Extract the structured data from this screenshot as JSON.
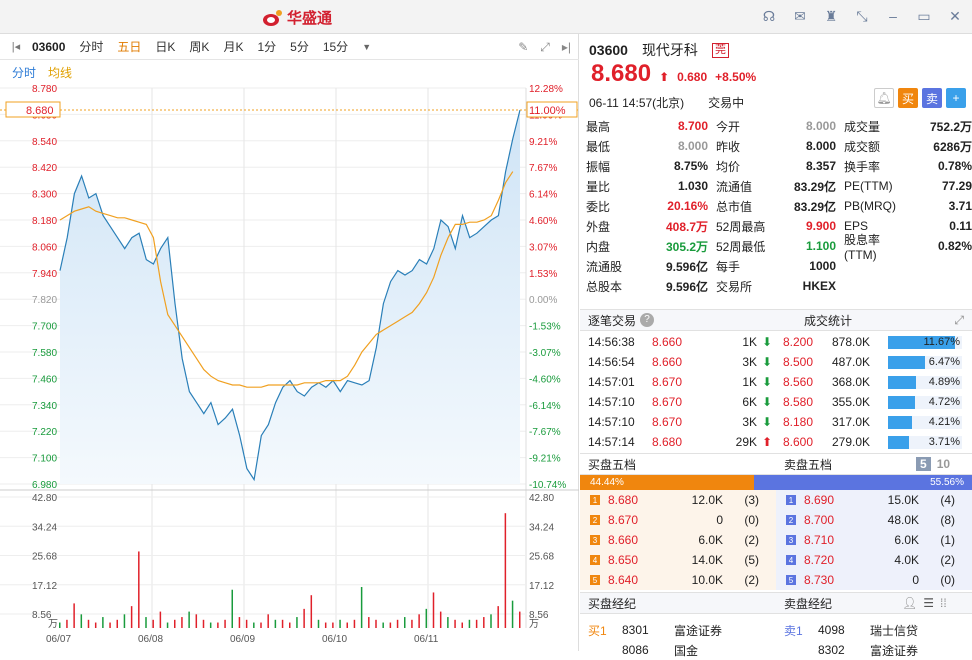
{
  "app": {
    "title": "华盛通"
  },
  "toolbar": {
    "code": "03600",
    "periods": [
      "分时",
      "五日",
      "日K",
      "周K",
      "月K",
      "1分",
      "5分",
      "15分"
    ],
    "active_period": "五日",
    "subtabs": [
      "分时",
      "均线"
    ]
  },
  "colors": {
    "up": "#e0202a",
    "down": "#199b3c",
    "price_line": "#2a7fb8",
    "avg_line": "#f0a020",
    "brand": "#d2202f"
  },
  "chart_data": {
    "type": "line",
    "ylim": [
      6.98,
      8.78
    ],
    "y_ticks_left": [
      "8.780",
      "8.680",
      "8.540",
      "8.420",
      "8.300",
      "8.180",
      "8.060",
      "7.940",
      "7.820",
      "7.700",
      "7.580",
      "7.460",
      "7.340",
      "7.220",
      "7.100",
      "6.980"
    ],
    "y_ticks_right": [
      "12.28%",
      "11.00%",
      "9.21%",
      "7.67%",
      "6.14%",
      "4.60%",
      "3.07%",
      "1.53%",
      "0.00%",
      "-1.53%",
      "-3.07%",
      "-4.60%",
      "-6.14%",
      "-7.67%",
      "-9.21%",
      "-10.74%"
    ],
    "current_price": "8.680",
    "current_pct": "11.00%",
    "x_labels": [
      "06/07",
      "06/08",
      "06/09",
      "06/10",
      "06/11"
    ],
    "volume_ticks": [
      "42.80",
      "34.24",
      "25.68",
      "17.12",
      "8.56",
      "万"
    ],
    "series": [
      {
        "values": [
          7.95,
          8.1,
          8.3,
          8.38,
          8.28,
          8.3,
          8.2,
          8.15,
          8.1,
          8.05,
          8.1,
          8.12,
          8.0,
          7.98,
          8.05,
          8.1,
          7.8,
          7.55,
          7.4,
          7.35,
          7.3,
          7.35,
          7.25,
          7.28,
          7.32,
          7.2,
          7.05,
          7.0,
          7.2,
          7.25,
          7.35,
          7.42,
          7.45,
          7.4,
          7.38,
          7.42,
          7.44,
          7.42,
          7.45,
          7.4,
          7.45,
          7.44,
          7.43,
          7.45,
          7.6,
          7.8,
          7.9,
          7.95,
          7.93,
          7.95,
          8.0,
          7.98,
          8.05,
          8.18,
          8.15,
          8.05,
          8.2,
          8.1,
          8.12,
          8.15,
          8.18,
          8.2,
          8.4,
          8.55,
          8.68
        ]
      },
      {
        "values": [
          8.18,
          8.2,
          8.22,
          8.23,
          8.24,
          8.22,
          8.21,
          8.2,
          8.19,
          8.19,
          8.18,
          8.17,
          8.16,
          8.1,
          7.9,
          7.75,
          7.7,
          7.65,
          7.6,
          7.55,
          7.5,
          7.47,
          7.45,
          7.44,
          7.43,
          7.43,
          7.42,
          7.42,
          7.42,
          7.43,
          7.43,
          7.43,
          7.43,
          7.43,
          7.44,
          7.44,
          7.44,
          7.45,
          7.45,
          7.45,
          7.47,
          7.52,
          7.58,
          7.62,
          7.66,
          7.68,
          7.7,
          7.72,
          7.74,
          7.76,
          7.8,
          7.85,
          7.92,
          8.02,
          8.1,
          8.16,
          8.16,
          8.17,
          8.17,
          8.18,
          8.2,
          8.27,
          8.35,
          8.4
        ]
      }
    ],
    "volumes": [
      2,
      3,
      9,
      5,
      3,
      2,
      4,
      2,
      3,
      5,
      8,
      28,
      4,
      3,
      6,
      2,
      3,
      4,
      6,
      5,
      3,
      2,
      2,
      3,
      14,
      4,
      3,
      2,
      2,
      5,
      3,
      3,
      2,
      4,
      7,
      12,
      3,
      2,
      2,
      3,
      2,
      3,
      15,
      4,
      3,
      2,
      2,
      3,
      4,
      3,
      5,
      7,
      13,
      6,
      4,
      3,
      2,
      3,
      3,
      4,
      5,
      8,
      42,
      10,
      6
    ]
  },
  "quote": {
    "code": "03600",
    "name": "现代牙科",
    "badge": "莞",
    "price": "8.680",
    "change": "0.680",
    "change_pct": "+8.50%",
    "datetime": "06-11  14:57(北京)",
    "status": "交易中",
    "buttons": {
      "buy": "买",
      "sell": "卖"
    }
  },
  "stats": [
    [
      "最高",
      "8.700",
      "今开",
      "8.000",
      "成交量",
      "752.2万"
    ],
    [
      "最低",
      "8.000",
      "昨收",
      "8.000",
      "成交额",
      "6286万"
    ],
    [
      "振幅",
      "8.75%",
      "均价",
      "8.357",
      "换手率",
      "0.78%"
    ],
    [
      "量比",
      "1.030",
      "流通值",
      "83.29亿",
      "PE(TTM)",
      "77.29"
    ],
    [
      "委比",
      "20.16%",
      "总市值",
      "83.29亿",
      "PB(MRQ)",
      "3.71"
    ],
    [
      "外盘",
      "408.7万",
      "52周最高",
      "9.900",
      "EPS",
      "0.11"
    ],
    [
      "内盘",
      "305.2万",
      "52周最低",
      "1.100",
      "股息率(TTM)",
      "0.82%"
    ],
    [
      "流通股",
      "9.596亿",
      "每手",
      "1000",
      "",
      ""
    ],
    [
      "总股本",
      "9.596亿",
      "交易所",
      "HKEX",
      "",
      ""
    ]
  ],
  "trades": {
    "title": "逐笔交易",
    "stats_title": "成交统计",
    "rows": [
      {
        "time": "14:56:38",
        "price": "8.660",
        "vol": "1K",
        "dir": "down"
      },
      {
        "time": "14:56:54",
        "price": "8.660",
        "vol": "3K",
        "dir": "down"
      },
      {
        "time": "14:57:01",
        "price": "8.670",
        "vol": "1K",
        "dir": "down"
      },
      {
        "time": "14:57:10",
        "price": "8.670",
        "vol": "6K",
        "dir": "down"
      },
      {
        "time": "14:57:10",
        "price": "8.670",
        "vol": "3K",
        "dir": "down"
      },
      {
        "time": "14:57:14",
        "price": "8.680",
        "vol": "29K",
        "dir": "up"
      }
    ],
    "stat_rows": [
      {
        "price": "8.200",
        "vol": "878.0K",
        "pct": "11.67%",
        "frac": 0.9
      },
      {
        "price": "8.500",
        "vol": "487.0K",
        "pct": "6.47%",
        "frac": 0.5
      },
      {
        "price": "8.560",
        "vol": "368.0K",
        "pct": "4.89%",
        "frac": 0.38
      },
      {
        "price": "8.580",
        "vol": "355.0K",
        "pct": "4.72%",
        "frac": 0.36
      },
      {
        "price": "8.180",
        "vol": "317.0K",
        "pct": "4.21%",
        "frac": 0.32
      },
      {
        "price": "8.600",
        "vol": "279.0K",
        "pct": "3.71%",
        "frac": 0.28
      }
    ]
  },
  "orderbook": {
    "buy_title": "买盘五档",
    "sell_title": "卖盘五档",
    "levels_options": [
      "5",
      "10"
    ],
    "buy_pct": "44.44%",
    "sell_pct": "55.56%",
    "buy_frac": 0.4444,
    "bids": [
      {
        "n": "1",
        "price": "8.680",
        "vol": "12.0K",
        "cnt": "(3)"
      },
      {
        "n": "2",
        "price": "8.670",
        "vol": "0",
        "cnt": "(0)"
      },
      {
        "n": "3",
        "price": "8.660",
        "vol": "6.0K",
        "cnt": "(2)"
      },
      {
        "n": "4",
        "price": "8.650",
        "vol": "14.0K",
        "cnt": "(5)"
      },
      {
        "n": "5",
        "price": "8.640",
        "vol": "10.0K",
        "cnt": "(2)"
      }
    ],
    "asks": [
      {
        "n": "1",
        "price": "8.690",
        "vol": "15.0K",
        "cnt": "(4)"
      },
      {
        "n": "2",
        "price": "8.700",
        "vol": "48.0K",
        "cnt": "(8)"
      },
      {
        "n": "3",
        "price": "8.710",
        "vol": "6.0K",
        "cnt": "(1)"
      },
      {
        "n": "4",
        "price": "8.720",
        "vol": "4.0K",
        "cnt": "(2)"
      },
      {
        "n": "5",
        "price": "8.730",
        "vol": "0",
        "cnt": "(0)"
      }
    ]
  },
  "brokers": {
    "buy_title": "买盘经纪",
    "sell_title": "卖盘经纪",
    "buy": [
      {
        "lvl": "买1",
        "id": "8301",
        "name": "富途证券"
      },
      {
        "lvl": "",
        "id": "8086",
        "name": "国金"
      }
    ],
    "sell": [
      {
        "lvl": "卖1",
        "id": "4098",
        "name": "瑞士信贷"
      },
      {
        "lvl": "",
        "id": "8302",
        "name": "富途证券"
      }
    ]
  }
}
